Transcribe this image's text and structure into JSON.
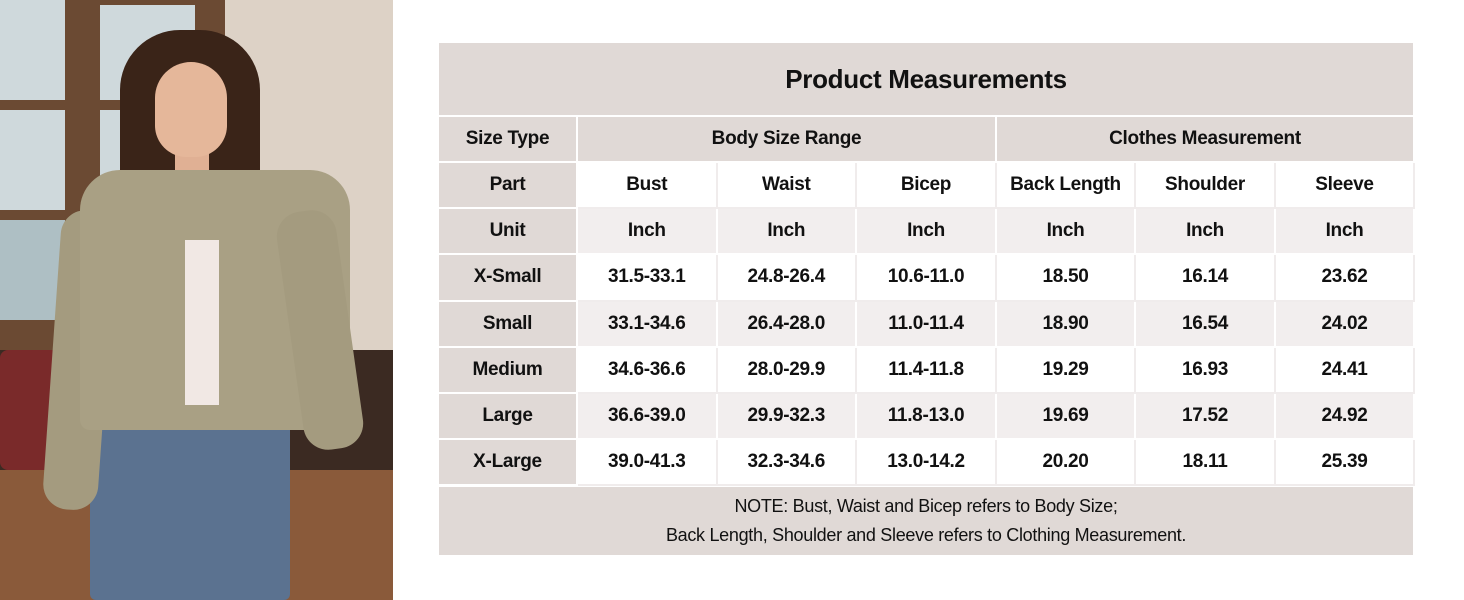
{
  "title": "Product Measurements",
  "header": {
    "size_type": "Size Type",
    "body": "Body Size Range",
    "clothes": "Clothes Measurement"
  },
  "part_label": "Part",
  "parts": [
    "Bust",
    "Waist",
    "Bicep",
    "Back Length",
    "Shoulder",
    "Sleeve"
  ],
  "unit_label": "Unit",
  "units": [
    "Inch",
    "Inch",
    "Inch",
    "Inch",
    "Inch",
    "Inch"
  ],
  "rows": [
    {
      "size": "X-Small",
      "values": [
        "31.5-33.1",
        "24.8-26.4",
        "10.6-11.0",
        "18.50",
        "16.14",
        "23.62"
      ]
    },
    {
      "size": "Small",
      "values": [
        "33.1-34.6",
        "26.4-28.0",
        "11.0-11.4",
        "18.90",
        "16.54",
        "24.02"
      ]
    },
    {
      "size": "Medium",
      "values": [
        "34.6-36.6",
        "28.0-29.9",
        "11.4-11.8",
        "19.29",
        "16.93",
        "24.41"
      ]
    },
    {
      "size": "Large",
      "values": [
        "36.6-39.0",
        "29.9-32.3",
        "11.8-13.0",
        "19.69",
        "17.52",
        "24.92"
      ]
    },
    {
      "size": "X-Large",
      "values": [
        "39.0-41.3",
        "32.3-34.6",
        "13.0-14.2",
        "20.20",
        "18.11",
        "25.39"
      ]
    }
  ],
  "note": {
    "line1": "NOTE: Bust, Waist and Bicep refers to Body Size;",
    "line2": "Back Length, Shoulder and Sleeve refers to Clothing Measurement."
  },
  "colors": {
    "header_bg": "#e0d9d6",
    "alt_row_bg": "#f2eeee",
    "jacket": "#a9a084"
  }
}
